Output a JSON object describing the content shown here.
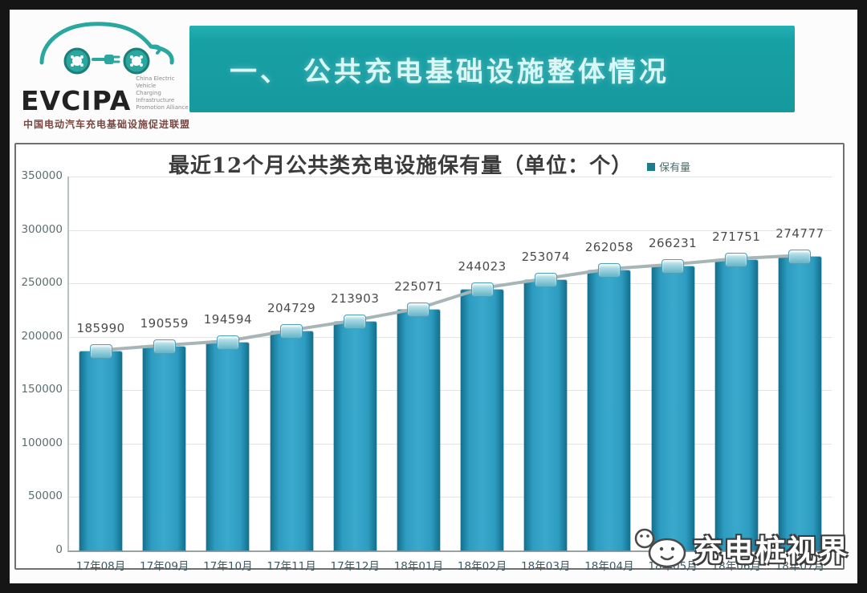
{
  "logo": {
    "brand": "EVCIPA",
    "english_line1": "China Electric Vehicle",
    "english_line2": "Charging Infrastructure",
    "english_line3": "Promotion Alliance",
    "chinese_name": "中国电动汽车充电基础设施促进联盟"
  },
  "banner": {
    "title": "一、 公共充电基础设施整体情况",
    "background_color": "#16999e",
    "text_color": "#d9f8f5"
  },
  "watermark": {
    "text": "充电桩视界",
    "icon": "charging-pile-face-icon"
  },
  "chart_data": {
    "type": "bar",
    "overlay_line": true,
    "title": "最近12个月公共类充电设施保有量（单位：个）",
    "legend": {
      "label": "保有量",
      "position": "top-right",
      "color": "#1a7f8c"
    },
    "categories": [
      "17年08月",
      "17年09月",
      "17年10月",
      "17年11月",
      "17年12月",
      "18年01月",
      "18年02月",
      "18年03月",
      "18年04月",
      "18年05月",
      "18年06月",
      "18年07月"
    ],
    "values": [
      185990,
      190559,
      194594,
      204729,
      213903,
      225071,
      244023,
      253074,
      262058,
      266231,
      271751,
      274777
    ],
    "xlabel": "",
    "ylabel": "",
    "ylim": [
      0,
      350000
    ],
    "yticks": [
      0,
      50000,
      100000,
      150000,
      200000,
      250000,
      300000,
      350000
    ],
    "grid": true,
    "bar_color": "#2d9cc0",
    "line_color": "#a8b5b7"
  }
}
